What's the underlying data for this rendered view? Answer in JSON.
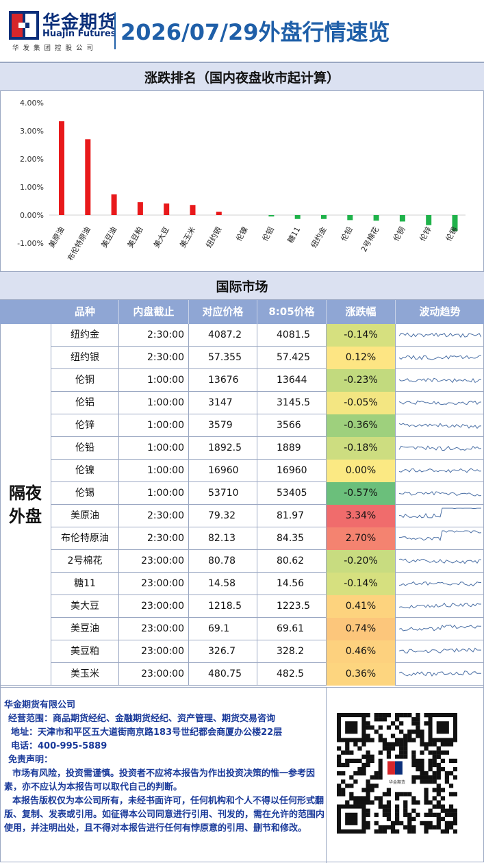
{
  "header": {
    "logo_cn": "华金期货",
    "logo_en": "Huajin Futures",
    "logo_sub": "华发集团控股公司",
    "title": "2026/07/29外盘行情速览"
  },
  "section1": {
    "title": "涨跌排名（国内夜盘收市起计算）"
  },
  "chart_data": {
    "type": "bar",
    "title": "涨跌排名（国内夜盘收市起计算）",
    "categories": [
      "美原油",
      "布伦特原油",
      "美豆油",
      "美豆粕",
      "美大豆",
      "美玉米",
      "纽约银",
      "伦镍",
      "伦铝",
      "糖11",
      "纽约金",
      "伦铅",
      "2号棉花",
      "伦铜",
      "伦锌",
      "伦锡"
    ],
    "values": [
      3.34,
      2.7,
      0.74,
      0.46,
      0.41,
      0.36,
      0.12,
      0.0,
      -0.05,
      -0.14,
      -0.14,
      -0.18,
      -0.2,
      -0.23,
      -0.36,
      -0.57
    ],
    "yticks": [
      "4.00%",
      "3.00%",
      "2.00%",
      "1.00%",
      "0.00%",
      "-1.00%"
    ],
    "ylim": [
      -1,
      4
    ],
    "pos_color": "#e8191b",
    "neg_color": "#1fb24a"
  },
  "section2": {
    "title": "国际市场"
  },
  "table": {
    "headers": [
      "品种",
      "内盘截止",
      "对应价格",
      "8:05价格",
      "涨跌幅",
      "波动趋势"
    ],
    "side_label_1": "隔夜",
    "side_label_2": "外盘",
    "rows": [
      {
        "name": "纽约金",
        "cutoff": "2:30:00",
        "ref": "4087.2",
        "now": "4081.5",
        "chg": "-0.14%",
        "color": "#d6e07f"
      },
      {
        "name": "纽约银",
        "cutoff": "2:30:00",
        "ref": "57.355",
        "now": "57.425",
        "chg": "0.12%",
        "color": "#fde583"
      },
      {
        "name": "伦铜",
        "cutoff": "1:00:00",
        "ref": "13676",
        "now": "13644",
        "chg": "-0.23%",
        "color": "#c2da7e"
      },
      {
        "name": "伦铝",
        "cutoff": "1:00:00",
        "ref": "3147",
        "now": "3145.5",
        "chg": "-0.05%",
        "color": "#f3e682"
      },
      {
        "name": "伦锌",
        "cutoff": "1:00:00",
        "ref": "3579",
        "now": "3566",
        "chg": "-0.36%",
        "color": "#9ed07d"
      },
      {
        "name": "伦铅",
        "cutoff": "1:00:00",
        "ref": "1892.5",
        "now": "1889",
        "chg": "-0.18%",
        "color": "#cddd80"
      },
      {
        "name": "伦镍",
        "cutoff": "1:00:00",
        "ref": "16960",
        "now": "16960",
        "chg": "0.00%",
        "color": "#fbe983"
      },
      {
        "name": "伦锡",
        "cutoff": "1:00:00",
        "ref": "53710",
        "now": "53405",
        "chg": "-0.57%",
        "color": "#6bbf7b"
      },
      {
        "name": "美原油",
        "cutoff": "2:30:00",
        "ref": "79.32",
        "now": "81.97",
        "chg": "3.34%",
        "color": "#f06c6c"
      },
      {
        "name": "布伦特原油",
        "cutoff": "2:30:00",
        "ref": "82.13",
        "now": "84.35",
        "chg": "2.70%",
        "color": "#f48370"
      },
      {
        "name": "2号棉花",
        "cutoff": "23:00:00",
        "ref": "80.78",
        "now": "80.62",
        "chg": "-0.20%",
        "color": "#c8dc80"
      },
      {
        "name": "糖11",
        "cutoff": "23:00:00",
        "ref": "14.58",
        "now": "14.56",
        "chg": "-0.14%",
        "color": "#d6e07f"
      },
      {
        "name": "美大豆",
        "cutoff": "23:00:00",
        "ref": "1218.5",
        "now": "1223.5",
        "chg": "0.41%",
        "color": "#fdd37e"
      },
      {
        "name": "美豆油",
        "cutoff": "23:00:00",
        "ref": "69.1",
        "now": "69.61",
        "chg": "0.74%",
        "color": "#fcc67b"
      },
      {
        "name": "美豆粕",
        "cutoff": "23:00:00",
        "ref": "326.7",
        "now": "328.2",
        "chg": "0.46%",
        "color": "#fdd17e"
      },
      {
        "name": "美玉米",
        "cutoff": "23:00:00",
        "ref": "480.75",
        "now": "482.5",
        "chg": "0.36%",
        "color": "#fdd57f"
      }
    ]
  },
  "footer": {
    "company": "华金期货有限公司",
    "scope": "经营范围：商品期货经纪、金融期货经纪、资产管理、期货交易咨询",
    "address": "地址：天津市和平区五大道街南京路183号世纪都会商厦办公楼22层",
    "phone": "电话：400-995-5889",
    "disclaimer_title": "免责声明：",
    "disclaimer_1": "市场有风险，投资需谨慎。投资者不应将本报告为作出投资决策的惟一参考因素，亦不应认为本报告可以取代自己的判断。",
    "disclaimer_2": "本报告版权仅为本公司所有，未经书面许可，任何机构和个人不得以任何形式翻版、复制、发表或引用。如征得本公司同意进行引用、刊发的，需在允许的范围内使用，并注明出处，且不得对本报告进行任何有悖原意的引用、删节和修改。",
    "qr_logo_text": "华金期货"
  }
}
